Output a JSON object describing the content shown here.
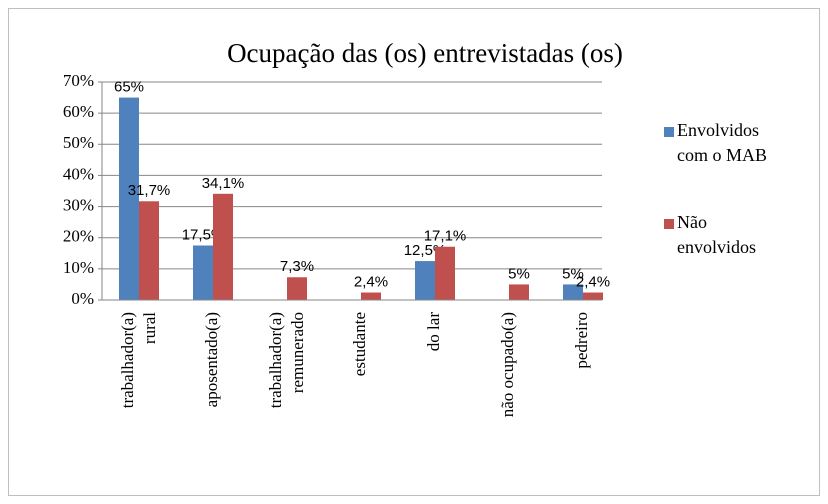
{
  "chart_data": {
    "type": "bar",
    "title": "Ocupação das (os) entrevistadas (os)",
    "categories": [
      "trabalhador(a)\nrural",
      "aposentado(a)",
      "trabalhador(a)\nremunerado",
      "estudante",
      "do lar",
      "não ocupado(a)",
      "pedreiro"
    ],
    "series": [
      {
        "name": "Envolvidos\ncom o MAB",
        "color": "#4f81bd",
        "values": [
          65,
          17.5,
          null,
          null,
          12.5,
          null,
          5
        ],
        "value_labels": [
          "65%",
          "17,5%",
          null,
          null,
          "12,5%",
          null,
          "5%"
        ]
      },
      {
        "name": "Não\nenvolvidos",
        "color": "#c0504d",
        "values": [
          31.7,
          34.1,
          7.3,
          2.4,
          17.1,
          5,
          2.4
        ],
        "value_labels": [
          "31,7%",
          "34,1%",
          "7,3%",
          "2,4%",
          "17,1%",
          "5%",
          "2,4%"
        ]
      }
    ],
    "ylim": [
      0,
      70
    ],
    "yticks": [
      {
        "value": 0,
        "label": "0%"
      },
      {
        "value": 10,
        "label": "10%"
      },
      {
        "value": 20,
        "label": "20%"
      },
      {
        "value": 30,
        "label": "30%"
      },
      {
        "value": 40,
        "label": "40%"
      },
      {
        "value": 50,
        "label": "50%"
      },
      {
        "value": 60,
        "label": "60%"
      },
      {
        "value": 70,
        "label": "70%"
      }
    ],
    "grid": true,
    "legend": "right"
  }
}
